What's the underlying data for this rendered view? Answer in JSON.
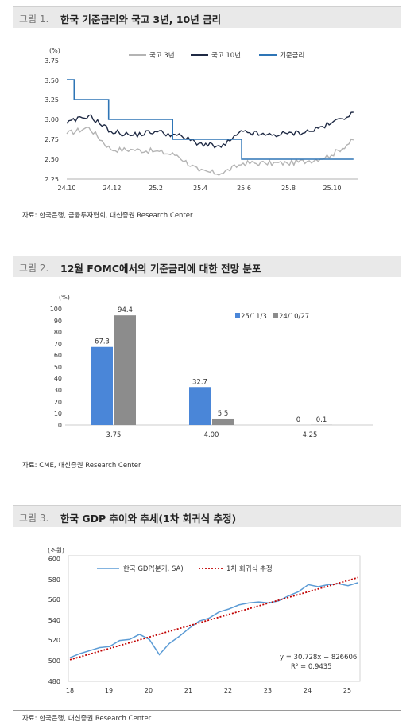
{
  "figures": [
    {
      "number": "그림 1.",
      "title": "한국 기준금리와 국고 3년, 10년 금리",
      "source": "자료: 한국은행, 금융투자협회, 대신증권 Research Center",
      "chart_data": {
        "type": "line",
        "ylabel": "(%)",
        "ylim": [
          2.25,
          3.75
        ],
        "yticks": [
          "3.75",
          "3.50",
          "3.25",
          "3.00",
          "2.75",
          "2.50",
          "2.25"
        ],
        "xticks": [
          "24.10",
          "24.12",
          "25.2",
          "25.4",
          "25.6",
          "25.8",
          "25.10"
        ],
        "legend": [
          "국고 3년",
          "국고 10년",
          "기준금리"
        ],
        "colors": {
          "ktb3y": "#b4b4b4",
          "ktb10y": "#1f2a44",
          "base": "#2e75b6"
        },
        "base_rate": {
          "x": [
            "24.10",
            "24.10.11",
            "24.11.28",
            "25.2.25",
            "25.5.29",
            "25.11"
          ],
          "values": [
            3.5,
            3.25,
            3.0,
            2.75,
            2.5,
            2.5
          ]
        },
        "ktb10y": {
          "x": [
            "24.10",
            "24.11",
            "24.12",
            "25.1",
            "25.2",
            "25.3",
            "25.4",
            "25.5",
            "25.6",
            "25.7",
            "25.8",
            "25.9",
            "25.10",
            "25.11"
          ],
          "values": [
            2.95,
            3.05,
            2.85,
            2.8,
            2.85,
            2.8,
            2.7,
            2.65,
            2.85,
            2.8,
            2.82,
            2.85,
            2.95,
            3.09
          ]
        },
        "ktb3y": {
          "x": [
            "24.10",
            "24.11",
            "24.12",
            "25.1",
            "25.2",
            "25.3",
            "25.4",
            "25.5",
            "25.6",
            "25.7",
            "25.8",
            "25.9",
            "25.10",
            "25.11"
          ],
          "values": [
            2.82,
            2.9,
            2.62,
            2.62,
            2.6,
            2.55,
            2.35,
            2.32,
            2.45,
            2.45,
            2.45,
            2.48,
            2.55,
            2.74
          ]
        }
      }
    },
    {
      "number": "그림 2.",
      "title": "12월 FOMC에서의 기준금리에 대한 전망 분포",
      "source": "자료: CME, 대신증권 Research Center",
      "chart_data": {
        "type": "bar",
        "ylabel": "(%)",
        "ylim": [
          0,
          100
        ],
        "categories": [
          "3.75",
          "4.00",
          "4.25"
        ],
        "series": [
          {
            "name": "25/11/3",
            "values": [
              67.3,
              32.7,
              0
            ],
            "labels": [
              "67.3",
              "32.7",
              "0"
            ],
            "color": "#4a86d8"
          },
          {
            "name": "24/10/27",
            "values": [
              94.4,
              5.5,
              0.1
            ],
            "labels": [
              "94.4",
              "5.5",
              "0.1"
            ],
            "color": "#8c8c8c"
          }
        ]
      }
    },
    {
      "number": "그림 3.",
      "title": "한국 GDP 추이와 추세(1차 회귀식 추정)",
      "source": "자료: 한국은행, 대신증권 Research Center",
      "chart_data": {
        "type": "line",
        "ylabel": "(조원)",
        "ylim": [
          480,
          600
        ],
        "yticks": [
          "600",
          "580",
          "560",
          "540",
          "520",
          "500",
          "480"
        ],
        "xticks": [
          "18",
          "19",
          "20",
          "21",
          "22",
          "23",
          "24",
          "25"
        ],
        "legend": [
          "한국 GDP(분기, SA)",
          "1차 회귀식 추정"
        ],
        "colors": {
          "gdp": "#5b9bd5",
          "trend": "#c00000"
        },
        "gdp": {
          "x": [
            2018.0,
            2018.25,
            2018.5,
            2018.75,
            2019.0,
            2019.25,
            2019.5,
            2019.75,
            2020.0,
            2020.25,
            2020.5,
            2020.75,
            2021.0,
            2021.25,
            2021.5,
            2021.75,
            2022.0,
            2022.25,
            2022.5,
            2022.75,
            2023.0,
            2023.25,
            2023.5,
            2023.75,
            2024.0,
            2024.25,
            2024.5,
            2024.75,
            2025.0,
            2025.25
          ],
          "values": [
            501,
            505,
            508,
            511,
            512,
            518,
            519,
            524,
            519,
            504,
            515,
            522,
            530,
            537,
            540,
            546,
            549,
            553,
            555,
            556,
            555,
            557,
            562,
            566,
            573,
            571,
            573,
            574,
            572,
            575
          ]
        },
        "trend": {
          "x": [
            2018.0,
            2025.25
          ],
          "values": [
            499,
            580
          ]
        },
        "annotation": [
          "y = 30.728x − 826606",
          "R²  = 0.9435"
        ]
      }
    }
  ]
}
